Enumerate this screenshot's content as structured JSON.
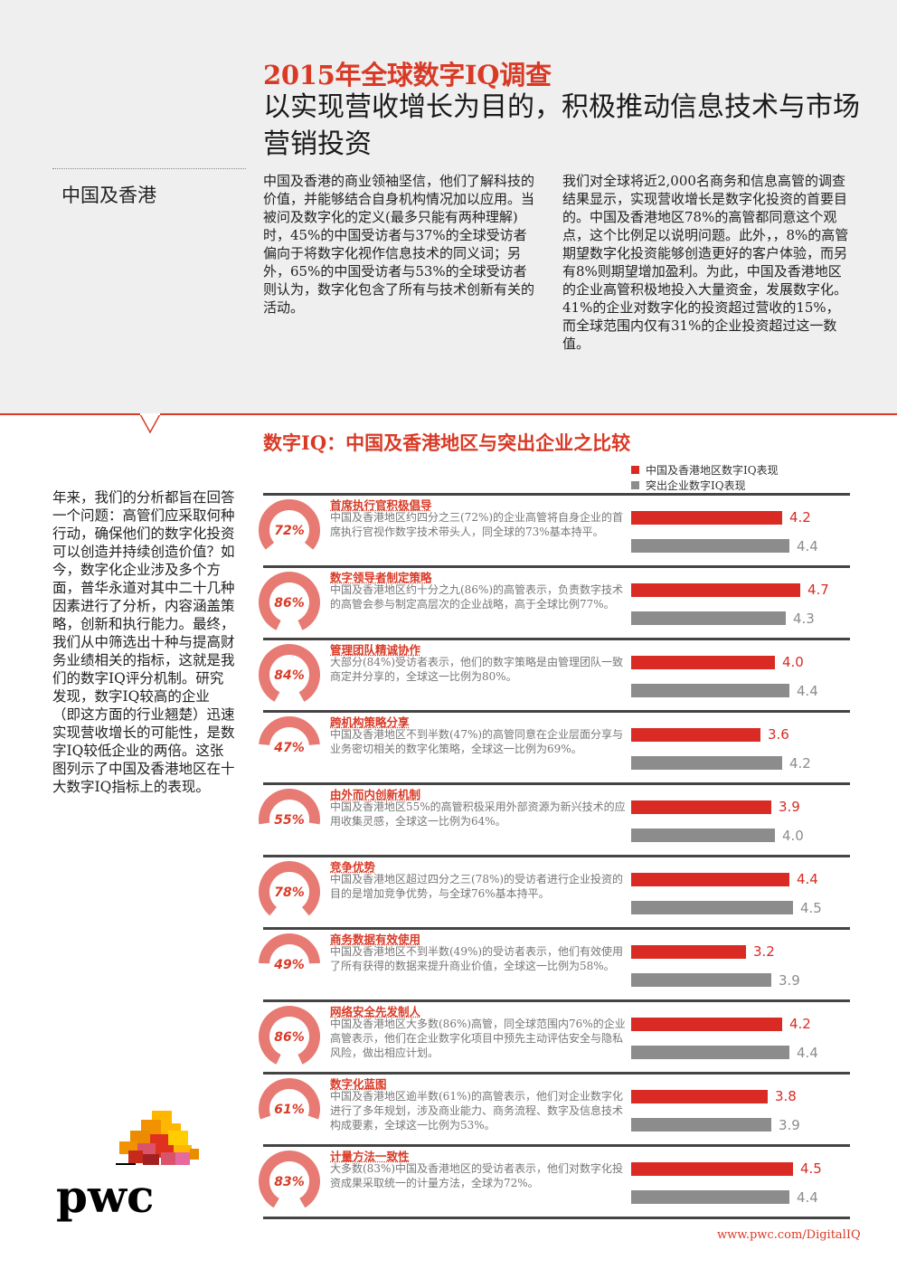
{
  "header": {
    "title_line1": "2015年全球数字IQ调查",
    "title_line2": "以实现营收增长为目的，积极推动信息技术与市场营销投资",
    "region": "中国及香港",
    "intro_col1": "中国及香港的商业领袖坚信，他们了解科技的价值，并能够结合自身机构情况加以应用。当被问及数字化的定义(最多只能有两种理解)时，45%的中国受访者与37%的全球受访者偏向于将数字化视作信息技术的同义词；另外，65%的中国受访者与53%的全球受访者则认为，数字化包含了所有与技术创新有关的活动。",
    "intro_col2": "我们对全球将近2,000名商务和信息高管的调查结果显示，实现营收增长是数字化投资的首要目的。中国及香港地区78%的高管都同意这个观点，这个比例足以说明问题。此外，，8%的高管期望数字化投资能够创造更好的客户体验，而另有8%则期望增加盈利。为此，中国及香港地区的企业高管积极地投入大量资金，发展数字化。41%的企业对数字化的投资超过营收的15%，而全球范围内仅有31%的企业投资超过这一数值。"
  },
  "sidebar": {
    "text": "年来，我们的分析都旨在回答一个问题：高管们应采取何种行动，确保他们的数字化投资可以创造并持续创造价值？如今，数字化企业涉及多个方面，普华永道对其中二十几种因素进行了分析，内容涵盖策略，创新和执行能力。最终，我们从中筛选出十种与提高财务业绩相关的指标，这就是我们的数字IQ评分机制。研究发现，数字IQ较高的企业（即这方面的行业翘楚）迅速实现营收增长的可能性，是数字IQ较低企业的两倍。这张图列示了中国及香港地区在十大数字IQ指标上的表现。"
  },
  "colors": {
    "accent": "#d93a26",
    "bar_cn": "#d92b24",
    "bar_top": "#8c8c8c",
    "ring": "#e77a72"
  },
  "chart_data": {
    "type": "bar",
    "title": "数字IQ：中国及香港地区与突出企业之比较",
    "legend": [
      "中国及香港地区数字IQ表现",
      "突出企业数字IQ表现"
    ],
    "legend_placement": "top-right",
    "xlim": [
      0,
      5
    ],
    "series": [
      {
        "name": "中国及香港地区数字IQ表现",
        "values": [
          4.2,
          4.7,
          4.0,
          3.6,
          3.9,
          4.4,
          3.2,
          4.2,
          3.8,
          4.5
        ]
      },
      {
        "name": "突出企业数字IQ表现",
        "values": [
          4.4,
          4.3,
          4.4,
          4.2,
          4.0,
          4.5,
          3.9,
          4.4,
          3.9,
          4.4
        ]
      }
    ],
    "rows": [
      {
        "heading": "首席执行官积极倡导",
        "pct": 72,
        "pct_label": "72%",
        "desc": "中国及香港地区约四分之三(72%)的企业高管将自身企业的首席执行官视作数字技术带头人，同全球的73%基本持平。",
        "cn": 4.2,
        "cn_label": "4.2",
        "top": 4.4,
        "top_label": "4.4"
      },
      {
        "heading": "数字领导者制定策略",
        "pct": 86,
        "pct_label": "86%",
        "desc": "中国及香港地区约十分之九(86%)的高管表示，负责数字技术的高管会参与制定高层次的企业战略，高于全球比例77%。",
        "cn": 4.7,
        "cn_label": "4.7",
        "top": 4.3,
        "top_label": "4.3"
      },
      {
        "heading": "管理团队精诚协作",
        "pct": 84,
        "pct_label": "84%",
        "desc": "大部分(84%)受访者表示，他们的数字策略是由管理团队一致商定并分享的，全球这一比例为80%。",
        "cn": 4.0,
        "cn_label": "4.0",
        "top": 4.4,
        "top_label": "4.4"
      },
      {
        "heading": "跨机构策略分享",
        "pct": 47,
        "pct_label": "47%",
        "desc": "中国及香港地区不到半数(47%)的高管同意在企业层面分享与业务密切相关的数字化策略，全球这一比例为69%。",
        "cn": 3.6,
        "cn_label": "3.6",
        "top": 4.2,
        "top_label": "4.2"
      },
      {
        "heading": "由外而内创新机制",
        "pct": 55,
        "pct_label": "55%",
        "desc": "中国及香港地区55%的高管积极采用外部资源为新兴技术的应用收集灵感，全球这一比例为64%。",
        "cn": 3.9,
        "cn_label": "3.9",
        "top": 4.0,
        "top_label": "4.0"
      },
      {
        "heading": "竞争优势",
        "pct": 78,
        "pct_label": "78%",
        "desc": "中国及香港地区超过四分之三(78%)的受访者进行企业投资的目的是增加竞争优势，与全球76%基本持平。",
        "cn": 4.4,
        "cn_label": "4.4",
        "top": 4.5,
        "top_label": "4.5"
      },
      {
        "heading": "商务数据有效使用",
        "pct": 49,
        "pct_label": "49%",
        "desc": "中国及香港地区不到半数(49%)的受访者表示，他们有效使用了所有获得的数据来提升商业价值，全球这一比例为58%。",
        "cn": 3.2,
        "cn_label": "3.2",
        "top": 3.9,
        "top_label": "3.9"
      },
      {
        "heading": "网络安全先发制人",
        "pct": 86,
        "pct_label": "86%",
        "desc": "中国及香港地区大多数(86%)高管，同全球范围内76%的企业高管表示，他们在企业数字化项目中预先主动评估安全与隐私风险，做出相应计划。",
        "cn": 4.2,
        "cn_label": "4.2",
        "top": 4.4,
        "top_label": "4.4"
      },
      {
        "heading": "数字化蓝图",
        "pct": 61,
        "pct_label": "61%",
        "desc": "中国及香港地区逾半数(61%)的高管表示，他们对企业数字化进行了多年规划，涉及商业能力、商务流程、数字及信息技术构成要素，全球这一比例为53%。",
        "cn": 3.8,
        "cn_label": "3.8",
        "top": 3.9,
        "top_label": "3.9"
      },
      {
        "heading": "计量方法一致性",
        "pct": 83,
        "pct_label": "83%",
        "desc": "大多数(83%)中国及香港地区的受访者表示，他们对数字化投资成果采取统一的计量方法，全球为72%。",
        "cn": 4.5,
        "cn_label": "4.5",
        "top": 4.4,
        "top_label": "4.4"
      }
    ]
  },
  "footer": {
    "logo_text": "pwc",
    "url": "www.pwc.com/DigitalIQ"
  }
}
